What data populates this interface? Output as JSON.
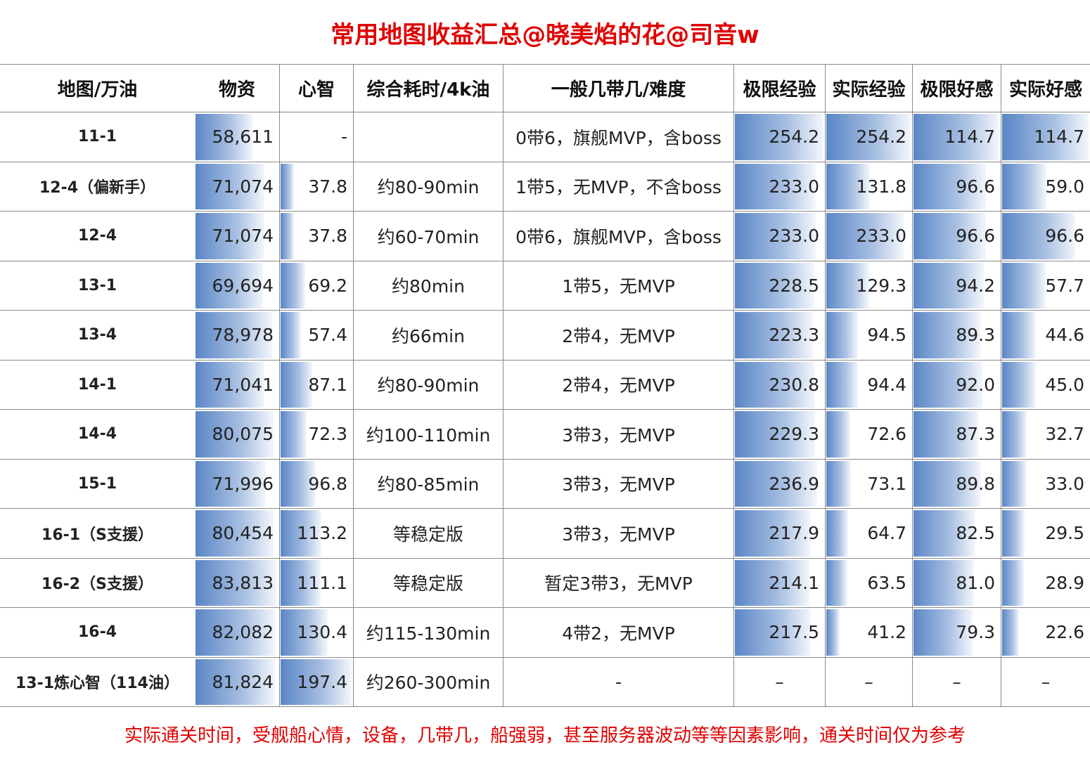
{
  "header": {
    "title": "常用地图收益汇总@晓美焰的花@司音w"
  },
  "table": {
    "columns": [
      "地图/万油",
      "物资",
      "心智",
      "综合耗时/4k油",
      "一般几带几/难度",
      "极限经验",
      "实际经验",
      "极限好感",
      "实际好感"
    ],
    "rows": [
      [
        "11-1",
        {
          "value": 58611,
          "label": "58,611"
        },
        "-",
        null,
        "0带6，旗舰MVP，含boss",
        254.2,
        254.2,
        114.7,
        114.7
      ],
      [
        "12-4（偏新手）",
        {
          "value": 71074,
          "label": "71,074"
        },
        37.8,
        "约80-90min",
        "1带5，无MVP，不含boss",
        {
          "value": 233,
          "label": "233.0"
        },
        131.8,
        96.6,
        {
          "value": 59,
          "label": "59.0"
        }
      ],
      [
        "12-4",
        {
          "value": 71074,
          "label": "71,074"
        },
        37.8,
        "约60-70min",
        "0带6，旗舰MVP，含boss",
        {
          "value": 233,
          "label": "233.0"
        },
        {
          "value": 233,
          "label": "233.0"
        },
        96.6,
        96.6
      ],
      [
        "13-1",
        {
          "value": 69694,
          "label": "69,694"
        },
        69.2,
        "约80min",
        "1带5，无MVP",
        228.5,
        129.3,
        94.2,
        57.7
      ],
      [
        "13-4",
        {
          "value": 78978,
          "label": "78,978"
        },
        57.4,
        "约66min",
        "2带4，无MVP",
        223.3,
        94.5,
        89.3,
        44.6
      ],
      [
        "14-1",
        {
          "value": 71041,
          "label": "71,041"
        },
        87.1,
        "约80-90min",
        "2带4，无MVP",
        230.8,
        94.4,
        {
          "value": 92,
          "label": "92.0"
        },
        {
          "value": 45,
          "label": "45.0"
        }
      ],
      [
        "14-4",
        {
          "value": 80075,
          "label": "80,075"
        },
        72.3,
        "约100-110min",
        "3带3，无MVP",
        229.3,
        72.6,
        87.3,
        32.7
      ],
      [
        "15-1",
        {
          "value": 71996,
          "label": "71,996"
        },
        96.8,
        "约80-85min",
        "3带3，无MVP",
        236.9,
        73.1,
        89.8,
        {
          "value": 33,
          "label": "33.0"
        }
      ],
      [
        "16-1（S支援）",
        {
          "value": 80454,
          "label": "80,454"
        },
        113.2,
        "等稳定版",
        "3带3，无MVP",
        217.9,
        64.7,
        82.5,
        29.5
      ],
      [
        "16-2（S支援）",
        {
          "value": 83813,
          "label": "83,813"
        },
        111.1,
        "等稳定版",
        "暂定3带3，无MVP",
        214.1,
        63.5,
        {
          "value": 81,
          "label": "81.0"
        },
        28.9
      ],
      [
        "16-4",
        {
          "value": 82082,
          "label": "82,082"
        },
        130.4,
        "约115-130min",
        "4带2，无MVP",
        217.5,
        41.2,
        79.3,
        22.6
      ],
      [
        "13-1炼心智（114油）",
        {
          "value": 81824,
          "label": "81,824"
        },
        197.4,
        "约260-300min",
        "-",
        "–",
        "–",
        "–",
        "–"
      ]
    ]
  },
  "footer": {
    "note": "实际通关时间，受舰船心情，设备，几带几，船强弱，甚至服务器波动等等因素影响，通关时间仅为参考"
  }
}
